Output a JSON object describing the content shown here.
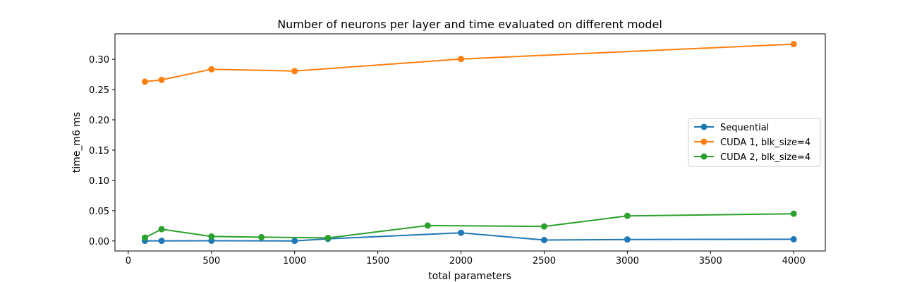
{
  "chart_data": {
    "type": "line",
    "title": "Number of neurons per layer and time evaluated on different model",
    "xlabel": "total parameters",
    "ylabel": "time_m6 ms",
    "xlim": [
      -80,
      4190
    ],
    "ylim": [
      -0.0165,
      0.342
    ],
    "xticks": [
      0,
      500,
      1000,
      1500,
      2000,
      2500,
      3000,
      3500,
      4000
    ],
    "yticks": [
      0.0,
      0.05,
      0.1,
      0.15,
      0.2,
      0.25,
      0.3
    ],
    "ytick_labels": [
      "0.00",
      "0.05",
      "0.10",
      "0.15",
      "0.20",
      "0.25",
      "0.30"
    ],
    "grid": false,
    "legend_position": "center-right",
    "series": [
      {
        "name": "Sequential",
        "color": "#1f77b4",
        "x": [
          100,
          200,
          500,
          1000,
          1200,
          2000,
          2500,
          3000,
          4000
        ],
        "y": [
          0.0003,
          0.0003,
          0.0004,
          0.0002,
          0.0035,
          0.0135,
          0.0015,
          0.0025,
          0.0028
        ]
      },
      {
        "name": "CUDA 1, blk_size=4",
        "color": "#ff7f0e",
        "x": [
          100,
          200,
          500,
          1000,
          2000,
          4000
        ],
        "y": [
          0.263,
          0.266,
          0.2835,
          0.2805,
          0.3005,
          0.325
        ]
      },
      {
        "name": "CUDA 2, blk_size=4",
        "color": "#2ca02c",
        "x": [
          100,
          200,
          500,
          800,
          1200,
          1800,
          2500,
          3000,
          4000
        ],
        "y": [
          0.0055,
          0.0195,
          0.0075,
          0.0063,
          0.005,
          0.0255,
          0.024,
          0.0415,
          0.045
        ]
      }
    ]
  }
}
